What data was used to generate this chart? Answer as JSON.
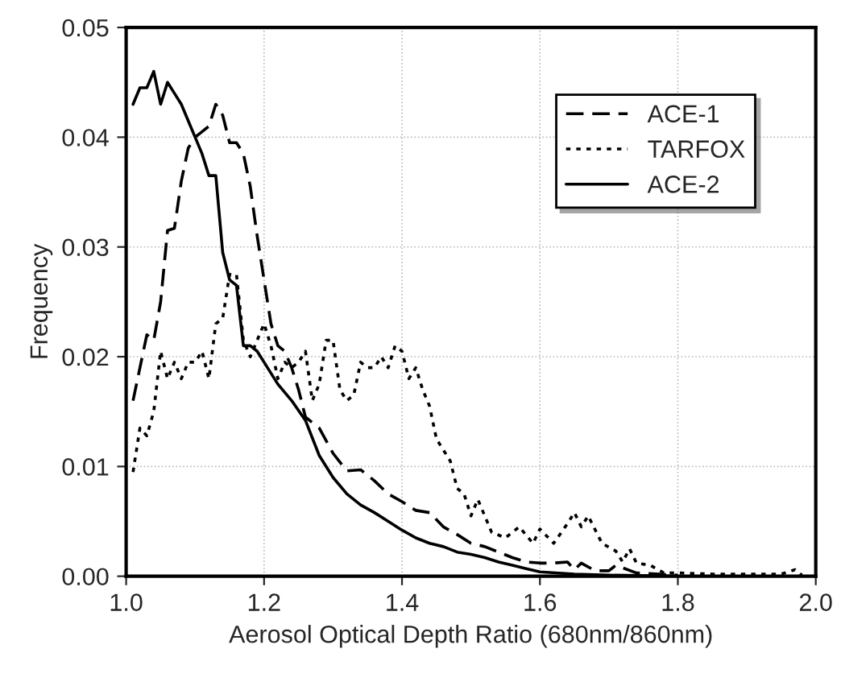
{
  "chart_data": {
    "type": "line",
    "xlabel": "Aerosol Optical Depth Ratio (680nm/860nm)",
    "ylabel": "Frequency",
    "xlim": [
      1.0,
      2.0
    ],
    "xticks": [
      {
        "value": 1.0,
        "label": "1.0"
      },
      {
        "value": 1.2,
        "label": "1.2"
      },
      {
        "value": 1.4,
        "label": "1.4"
      },
      {
        "value": 1.6,
        "label": "1.6"
      },
      {
        "value": 1.8,
        "label": "1.8"
      },
      {
        "value": 2.0,
        "label": "2.0"
      }
    ],
    "ylim": [
      0,
      0.05
    ],
    "yticks": [
      {
        "value": 0,
        "label": "0.00"
      },
      {
        "value": 0.01,
        "label": "0.01"
      },
      {
        "value": 0.02,
        "label": "0.02"
      },
      {
        "value": 0.03,
        "label": "0.03"
      },
      {
        "value": 0.04,
        "label": "0.04"
      },
      {
        "value": 0.05,
        "label": "0.05"
      }
    ],
    "grid": true,
    "legend": "top right",
    "marker": "none",
    "series": [
      {
        "name": "ACE-1",
        "color": "#000000",
        "line_style": "dashed",
        "x": [
          1.01,
          1.02,
          1.03,
          1.04,
          1.05,
          1.06,
          1.07,
          1.08,
          1.09,
          1.1,
          1.11,
          1.12,
          1.13,
          1.14,
          1.15,
          1.16,
          1.17,
          1.18,
          1.19,
          1.2,
          1.21,
          1.22,
          1.23,
          1.24,
          1.25,
          1.26,
          1.28,
          1.3,
          1.32,
          1.34,
          1.36,
          1.38,
          1.4,
          1.42,
          1.44,
          1.46,
          1.48,
          1.5,
          1.52,
          1.54,
          1.56,
          1.58,
          1.6,
          1.62,
          1.64,
          1.65,
          1.66,
          1.68,
          1.7,
          1.71,
          1.74,
          1.8
        ],
        "values": [
          0.016,
          0.019,
          0.022,
          0.0215,
          0.025,
          0.0315,
          0.0317,
          0.036,
          0.039,
          0.04,
          0.0405,
          0.041,
          0.043,
          0.042,
          0.0395,
          0.0395,
          0.0385,
          0.0355,
          0.031,
          0.027,
          0.023,
          0.021,
          0.0205,
          0.019,
          0.017,
          0.0145,
          0.0135,
          0.0112,
          0.0096,
          0.0097,
          0.0087,
          0.0075,
          0.0068,
          0.006,
          0.0058,
          0.0045,
          0.0038,
          0.003,
          0.0027,
          0.0022,
          0.0017,
          0.0013,
          0.0012,
          0.0012,
          0.0013,
          0.0006,
          0.0012,
          0.0005,
          0.0005,
          0.001,
          0.0003,
          0.0001
        ]
      },
      {
        "name": "TARFOX",
        "color": "#000000",
        "line_style": "dotted",
        "x": [
          1.01,
          1.02,
          1.03,
          1.04,
          1.05,
          1.06,
          1.07,
          1.08,
          1.09,
          1.1,
          1.11,
          1.12,
          1.13,
          1.14,
          1.15,
          1.16,
          1.17,
          1.18,
          1.19,
          1.2,
          1.21,
          1.22,
          1.23,
          1.24,
          1.25,
          1.26,
          1.27,
          1.28,
          1.29,
          1.3,
          1.31,
          1.32,
          1.33,
          1.34,
          1.35,
          1.36,
          1.37,
          1.38,
          1.39,
          1.4,
          1.41,
          1.42,
          1.43,
          1.44,
          1.45,
          1.46,
          1.47,
          1.48,
          1.49,
          1.5,
          1.51,
          1.52,
          1.53,
          1.55,
          1.57,
          1.59,
          1.6,
          1.62,
          1.64,
          1.65,
          1.66,
          1.67,
          1.69,
          1.71,
          1.72,
          1.73,
          1.74,
          1.76,
          1.78,
          1.8,
          1.85,
          1.9,
          1.95,
          1.97,
          1.98
        ],
        "values": [
          0.0095,
          0.0135,
          0.0128,
          0.015,
          0.0205,
          0.018,
          0.0195,
          0.018,
          0.0195,
          0.0195,
          0.0205,
          0.018,
          0.023,
          0.0235,
          0.0275,
          0.0275,
          0.0215,
          0.02,
          0.0215,
          0.023,
          0.021,
          0.018,
          0.0195,
          0.019,
          0.0195,
          0.0205,
          0.016,
          0.0175,
          0.0215,
          0.0215,
          0.017,
          0.016,
          0.0165,
          0.0195,
          0.019,
          0.019,
          0.02,
          0.019,
          0.021,
          0.0205,
          0.018,
          0.019,
          0.017,
          0.0155,
          0.0125,
          0.0115,
          0.0105,
          0.008,
          0.0075,
          0.0055,
          0.007,
          0.0055,
          0.004,
          0.0035,
          0.0045,
          0.003,
          0.0043,
          0.003,
          0.0048,
          0.0058,
          0.0045,
          0.0055,
          0.003,
          0.0023,
          0.0013,
          0.0025,
          0.0012,
          0.001,
          0.0003,
          0.0003,
          0.0002,
          0.0002,
          0.0002,
          0.0006,
          0.0001
        ]
      },
      {
        "name": "ACE-2",
        "color": "#000000",
        "line_style": "solid",
        "x": [
          1.01,
          1.02,
          1.03,
          1.04,
          1.05,
          1.06,
          1.07,
          1.08,
          1.09,
          1.1,
          1.11,
          1.12,
          1.13,
          1.14,
          1.15,
          1.16,
          1.17,
          1.18,
          1.19,
          1.2,
          1.22,
          1.24,
          1.26,
          1.28,
          1.3,
          1.32,
          1.34,
          1.36,
          1.38,
          1.4,
          1.42,
          1.44,
          1.46,
          1.48,
          1.5,
          1.52,
          1.54,
          1.56,
          1.58,
          1.6,
          1.65,
          1.7,
          1.8
        ],
        "values": [
          0.043,
          0.0445,
          0.0445,
          0.046,
          0.043,
          0.045,
          0.044,
          0.043,
          0.0415,
          0.04,
          0.0385,
          0.0365,
          0.0365,
          0.0295,
          0.027,
          0.0265,
          0.021,
          0.021,
          0.0205,
          0.0195,
          0.0175,
          0.016,
          0.0142,
          0.011,
          0.009,
          0.0075,
          0.0065,
          0.0058,
          0.005,
          0.0042,
          0.0035,
          0.003,
          0.0027,
          0.0022,
          0.002,
          0.0017,
          0.0013,
          0.001,
          0.0007,
          0.0004,
          0.0002,
          0.0001,
          0.0
        ]
      }
    ]
  }
}
